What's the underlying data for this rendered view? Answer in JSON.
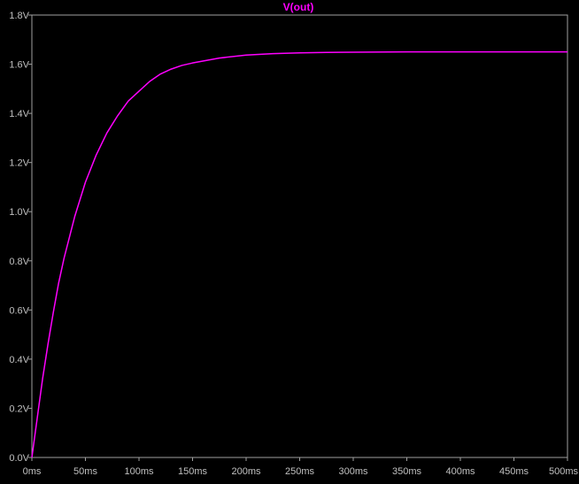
{
  "chart_data": {
    "type": "line",
    "title": "",
    "xlabel": "",
    "ylabel": "",
    "xlim": [
      0,
      500
    ],
    "ylim": [
      0,
      1.8
    ],
    "x_ticks": [
      {
        "value": 0,
        "label": "0ms"
      },
      {
        "value": 50,
        "label": "50ms"
      },
      {
        "value": 100,
        "label": "100ms"
      },
      {
        "value": 150,
        "label": "150ms"
      },
      {
        "value": 200,
        "label": "200ms"
      },
      {
        "value": 250,
        "label": "250ms"
      },
      {
        "value": 300,
        "label": "300ms"
      },
      {
        "value": 350,
        "label": "350ms"
      },
      {
        "value": 400,
        "label": "400ms"
      },
      {
        "value": 450,
        "label": "450ms"
      },
      {
        "value": 500,
        "label": "500ms"
      }
    ],
    "y_ticks": [
      {
        "value": 0,
        "label": "0.0V"
      },
      {
        "value": 0.2,
        "label": "0.2V"
      },
      {
        "value": 0.4,
        "label": "0.4V"
      },
      {
        "value": 0.6,
        "label": "0.6V"
      },
      {
        "value": 0.8,
        "label": "0.8V"
      },
      {
        "value": 1.0,
        "label": "1.0V"
      },
      {
        "value": 1.2,
        "label": "1.2V"
      },
      {
        "value": 1.4,
        "label": "1.4V"
      },
      {
        "value": 1.6,
        "label": "1.6V"
      },
      {
        "value": 1.8,
        "label": "1.8V"
      }
    ],
    "grid": false,
    "series": [
      {
        "name": "V(out)",
        "color": "#ff00ff",
        "x": [
          0,
          5,
          10,
          15,
          20,
          25,
          30,
          40,
          50,
          60,
          70,
          80,
          90,
          100,
          110,
          120,
          130,
          140,
          150,
          175,
          200,
          225,
          250,
          275,
          300,
          350,
          400,
          450,
          500
        ],
        "y": [
          0.0,
          0.16,
          0.32,
          0.46,
          0.59,
          0.71,
          0.81,
          0.98,
          1.12,
          1.23,
          1.32,
          1.39,
          1.45,
          1.49,
          1.53,
          1.56,
          1.58,
          1.595,
          1.605,
          1.625,
          1.637,
          1.643,
          1.646,
          1.648,
          1.649,
          1.65,
          1.65,
          1.65,
          1.65
        ]
      }
    ]
  },
  "colors": {
    "background": "#000000",
    "axis": "#a0a0a0",
    "tick_text": "#c0c0c0"
  }
}
